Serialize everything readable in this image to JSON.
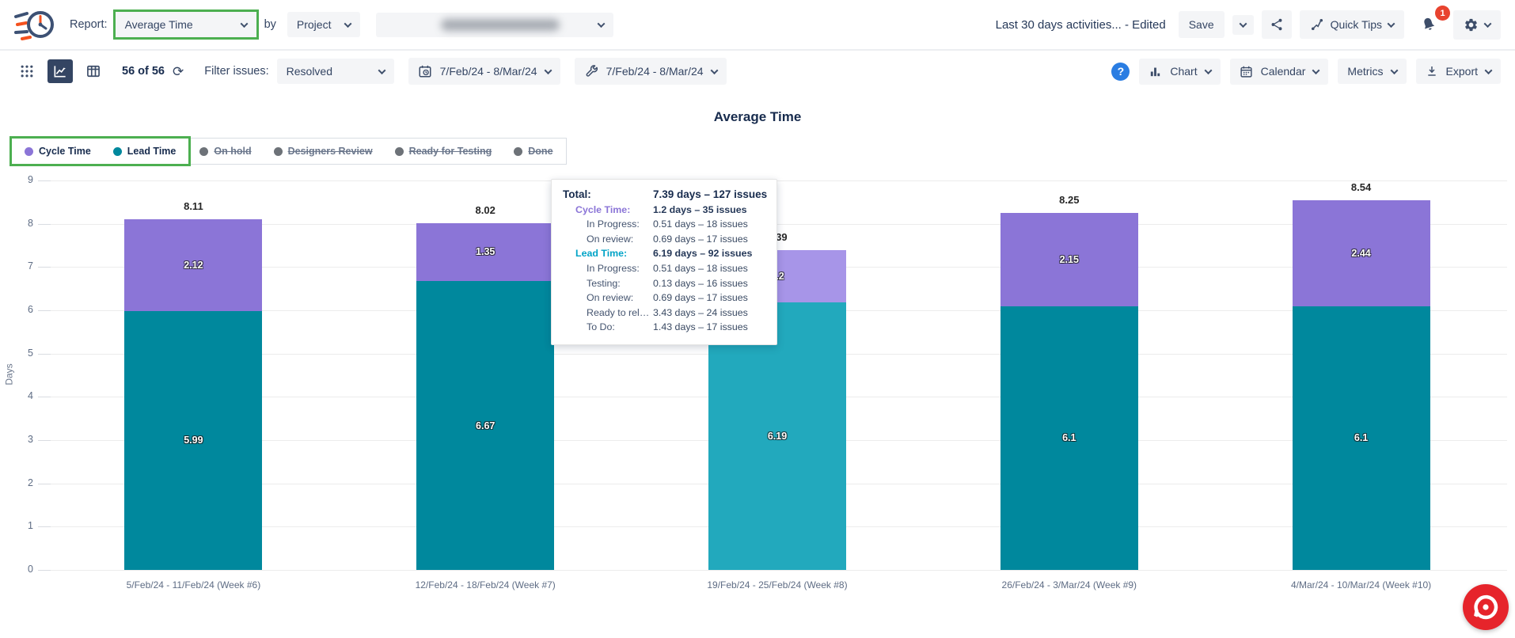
{
  "header": {
    "report_label": "Report:",
    "report_value": "Average Time",
    "by_label": "by",
    "group_value": "Project",
    "view_name": "Last 30 days activities... - Edited",
    "save_label": "Save",
    "quick_tips_label": "Quick Tips",
    "notification_count": "1"
  },
  "toolbar": {
    "count_text": "56 of 56",
    "filter_label": "Filter issues:",
    "filter_value": "Resolved",
    "date_range_created": "7/Feb/24 - 8/Mar/24",
    "date_range_resolved": "7/Feb/24 - 8/Mar/24",
    "chart_label": "Chart",
    "calendar_label": "Calendar",
    "metrics_label": "Metrics",
    "export_label": "Export"
  },
  "icons": {
    "refresh_glyph": "⟳",
    "help_glyph": "?"
  },
  "colors": {
    "cycle_time": "#8b75d7",
    "cycle_time_hover": "#a795e8",
    "lead_time": "#00889d",
    "lead_time_hover": "#22a9bd",
    "inactive_gray": "#6d7278",
    "highlight_green": "#4caf50",
    "accent_navy": "#344563",
    "widget_red": "#e6242b"
  },
  "chart_data": {
    "type": "bar",
    "stacked": true,
    "title": "Average Time",
    "xlabel": "",
    "ylabel": "Days",
    "ylim": [
      0,
      9
    ],
    "yticks": [
      0,
      1,
      2,
      3,
      4,
      5,
      6,
      7,
      8,
      9
    ],
    "grid": true,
    "legend_position": "top-left",
    "categories": [
      "5/Feb/24 - 11/Feb/24 (Week #6)",
      "12/Feb/24 - 18/Feb/24 (Week #7)",
      "19/Feb/24 - 25/Feb/24 (Week #8)",
      "26/Feb/24 - 3/Mar/24 (Week #9)",
      "4/Mar/24 - 10/Mar/24 (Week #10)"
    ],
    "series": [
      {
        "name": "Lead Time",
        "color": "#00889d",
        "hover_color": "#22a9bd",
        "values": [
          5.99,
          6.67,
          6.19,
          6.1,
          6.1
        ]
      },
      {
        "name": "Cycle Time",
        "color": "#8b75d7",
        "hover_color": "#a795e8",
        "values": [
          2.12,
          1.35,
          1.2,
          2.15,
          2.44
        ]
      }
    ],
    "totals": [
      8.11,
      8.02,
      7.39,
      8.25,
      8.54
    ],
    "hovered_index": 2,
    "legend": [
      {
        "label": "Cycle Time",
        "color": "#8b75d7",
        "active": true,
        "highlighted": true
      },
      {
        "label": "Lead Time",
        "color": "#00889d",
        "active": true,
        "highlighted": true
      },
      {
        "label": "On hold",
        "color": "#6d7278",
        "active": false,
        "highlighted": false
      },
      {
        "label": "Designers Review",
        "color": "#6d7278",
        "active": false,
        "highlighted": false
      },
      {
        "label": "Ready for Testing",
        "color": "#6d7278",
        "active": false,
        "highlighted": false
      },
      {
        "label": "Done",
        "color": "#6d7278",
        "active": false,
        "highlighted": false
      }
    ]
  },
  "tooltip": {
    "rows": [
      {
        "label": "Total:",
        "value": "7.39 days – 127 issues",
        "style": "total"
      },
      {
        "label": "Cycle Time:",
        "value": "1.2 days – 35 issues",
        "style": "cycle"
      },
      {
        "label": "In Progress:",
        "value": "0.51 days – 18 issues",
        "style": "sub"
      },
      {
        "label": "On review:",
        "value": "0.69 days – 17 issues",
        "style": "sub"
      },
      {
        "label": "Lead Time:",
        "value": "6.19 days – 92 issues",
        "style": "lead"
      },
      {
        "label": "In Progress:",
        "value": "0.51 days – 18 issues",
        "style": "sub"
      },
      {
        "label": "Testing:",
        "value": "0.13 days – 16 issues",
        "style": "sub"
      },
      {
        "label": "On review:",
        "value": "0.69 days – 17 issues",
        "style": "sub"
      },
      {
        "label": "Ready to rele...",
        "value": "3.43 days – 24 issues",
        "style": "sub"
      },
      {
        "label": "To Do:",
        "value": "1.43 days – 17 issues",
        "style": "sub"
      }
    ]
  }
}
